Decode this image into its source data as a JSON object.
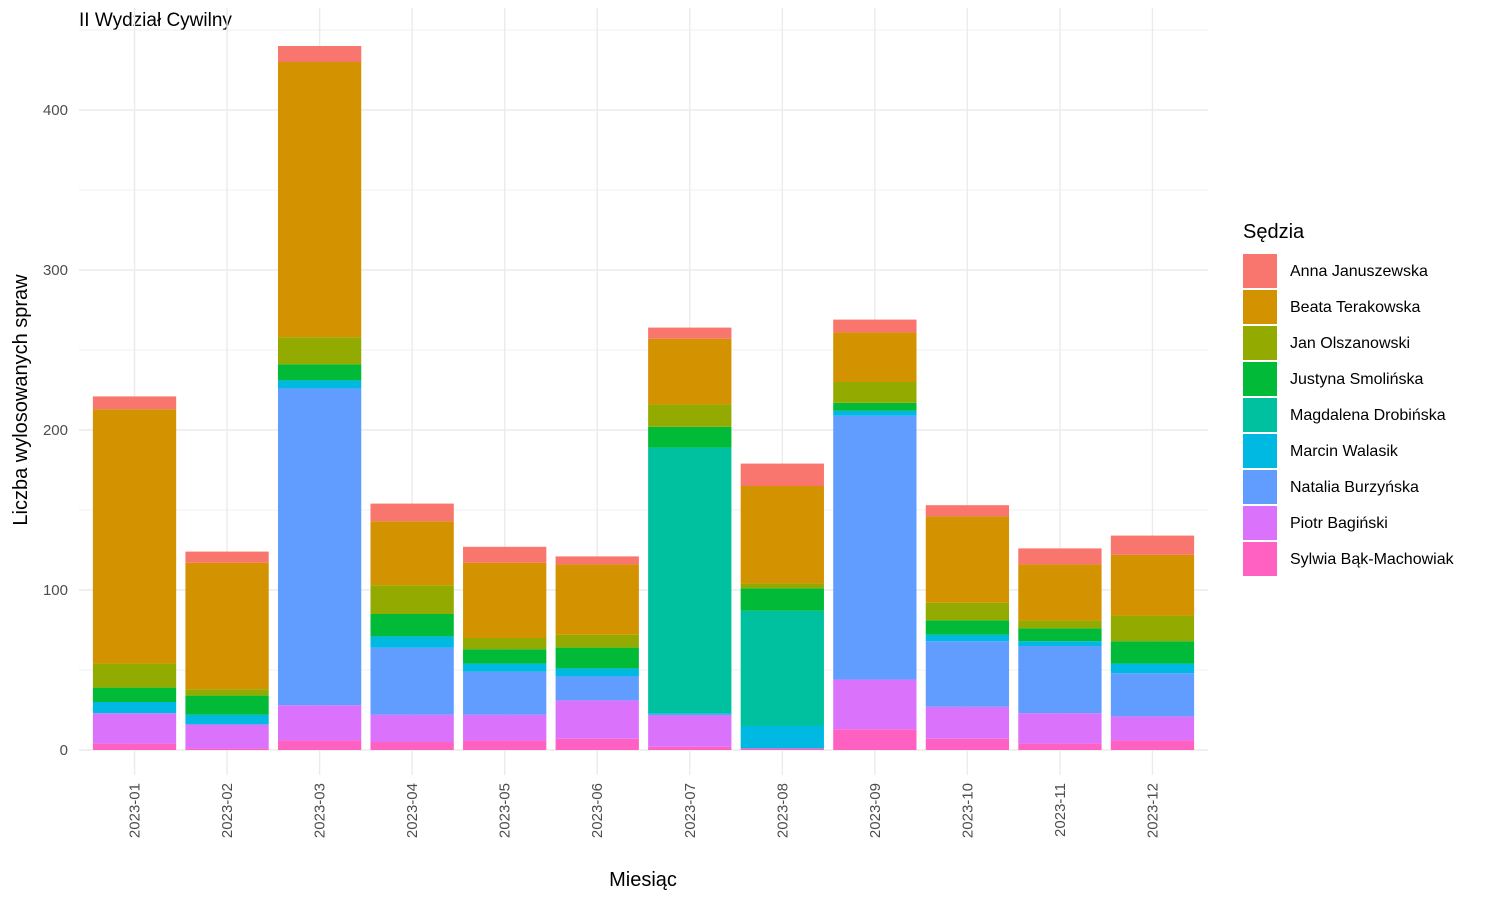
{
  "chart_data": {
    "type": "bar",
    "stacked": true,
    "title": "II Wydział Cywilny",
    "xlabel": "Miesiąc",
    "ylabel": "Liczba wylosowanych spraw",
    "ylim": [
      0,
      440
    ],
    "yticks": [
      0,
      100,
      200,
      300,
      400
    ],
    "grid": true,
    "legend_title": "Sędzia",
    "legend_position": "right",
    "categories": [
      "2023-01",
      "2023-02",
      "2023-03",
      "2023-04",
      "2023-05",
      "2023-06",
      "2023-07",
      "2023-08",
      "2023-09",
      "2023-10",
      "2023-11",
      "2023-12"
    ],
    "series": [
      {
        "name": "Sylwia Bąk-Machowiak",
        "color": "#FF61C3",
        "values": [
          4,
          1,
          6,
          5,
          6,
          7,
          2,
          1,
          13,
          7,
          4,
          6
        ]
      },
      {
        "name": "Piotr Bagiński",
        "color": "#DB72FB",
        "values": [
          19,
          15,
          22,
          17,
          16,
          24,
          20,
          0,
          31,
          20,
          19,
          15
        ]
      },
      {
        "name": "Natalia Burzyńska",
        "color": "#619CFF",
        "values": [
          0,
          0,
          198,
          42,
          27,
          15,
          0,
          0,
          165,
          41,
          42,
          27
        ]
      },
      {
        "name": "Marcin Walasik",
        "color": "#00B9E3",
        "values": [
          7,
          6,
          5,
          7,
          5,
          5,
          1,
          14,
          3,
          4,
          3,
          6
        ]
      },
      {
        "name": "Magdalena Drobińska",
        "color": "#00C19F",
        "values": [
          0,
          0,
          0,
          0,
          0,
          0,
          166,
          72,
          0,
          0,
          0,
          0
        ]
      },
      {
        "name": "Justyna Smolińska",
        "color": "#00BA38",
        "values": [
          9,
          12,
          10,
          14,
          9,
          13,
          13,
          14,
          5,
          9,
          8,
          14
        ]
      },
      {
        "name": "Jan Olszanowski",
        "color": "#93AA00",
        "values": [
          15,
          4,
          17,
          18,
          7,
          8,
          14,
          3,
          13,
          11,
          5,
          16
        ]
      },
      {
        "name": "Beata Terakowska",
        "color": "#D39200",
        "values": [
          159,
          79,
          172,
          40,
          47,
          44,
          41,
          61,
          31,
          54,
          35,
          38
        ]
      },
      {
        "name": "Anna Januszewska",
        "color": "#F8766D",
        "values": [
          8,
          7,
          10,
          11,
          10,
          5,
          7,
          14,
          8,
          7,
          10,
          12
        ]
      }
    ],
    "legend_order": [
      "Anna Januszewska",
      "Beata Terakowska",
      "Jan Olszanowski",
      "Justyna Smolińska",
      "Magdalena Drobińska",
      "Marcin Walasik",
      "Natalia Burzyńska",
      "Piotr Bagiński",
      "Sylwia Bąk-Machowiak"
    ]
  }
}
